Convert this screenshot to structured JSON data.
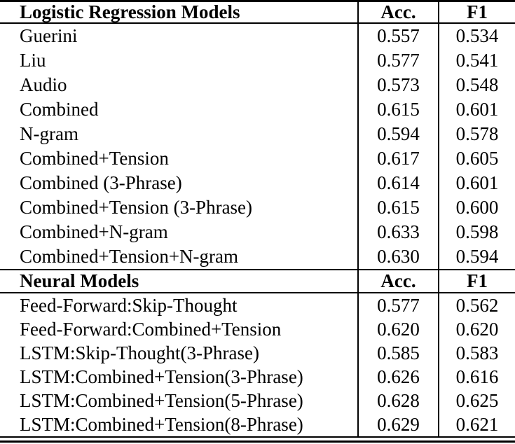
{
  "table": {
    "colors": {
      "text": "#000000",
      "background": "#ffffff",
      "rule": "#000000"
    },
    "sections": [
      {
        "title": "Logistic Regression Models",
        "acc_header": "Acc.",
        "f1_header": "F1",
        "rows": [
          {
            "model": "Guerini",
            "acc": "0.557",
            "f1": "0.534"
          },
          {
            "model": "Liu",
            "acc": "0.577",
            "f1": "0.541"
          },
          {
            "model": "Audio",
            "acc": "0.573",
            "f1": "0.548"
          },
          {
            "model": "Combined",
            "acc": "0.615",
            "f1": "0.601"
          },
          {
            "model": "N-gram",
            "acc": "0.594",
            "f1": "0.578"
          },
          {
            "model": "Combined+Tension",
            "acc": "0.617",
            "f1": "0.605"
          },
          {
            "model": "Combined (3-Phrase)",
            "acc": "0.614",
            "f1": "0.601"
          },
          {
            "model": "Combined+Tension (3-Phrase)",
            "acc": "0.615",
            "f1": "0.600"
          },
          {
            "model": "Combined+N-gram",
            "acc": "0.633",
            "f1": "0.598"
          },
          {
            "model": "Combined+Tension+N-gram",
            "acc": "0.630",
            "f1": "0.594"
          }
        ]
      },
      {
        "title": "Neural Models",
        "acc_header": "Acc.",
        "f1_header": "F1",
        "rows": [
          {
            "model": "Feed-Forward:Skip-Thought",
            "acc": "0.577",
            "f1": "0.562"
          },
          {
            "model": "Feed-Forward:Combined+Tension",
            "acc": "0.620",
            "f1": "0.620"
          },
          {
            "model": "LSTM:Skip-Thought(3-Phrase)",
            "acc": "0.585",
            "f1": "0.583"
          },
          {
            "model": "LSTM:Combined+Tension(3-Phrase)",
            "acc": "0.626",
            "f1": "0.616"
          },
          {
            "model": "LSTM:Combined+Tension(5-Phrase)",
            "acc": "0.628",
            "f1": "0.625"
          },
          {
            "model": "LSTM:Combined+Tension(8-Phrase)",
            "acc": "0.629",
            "f1": "0.621"
          }
        ]
      }
    ]
  }
}
